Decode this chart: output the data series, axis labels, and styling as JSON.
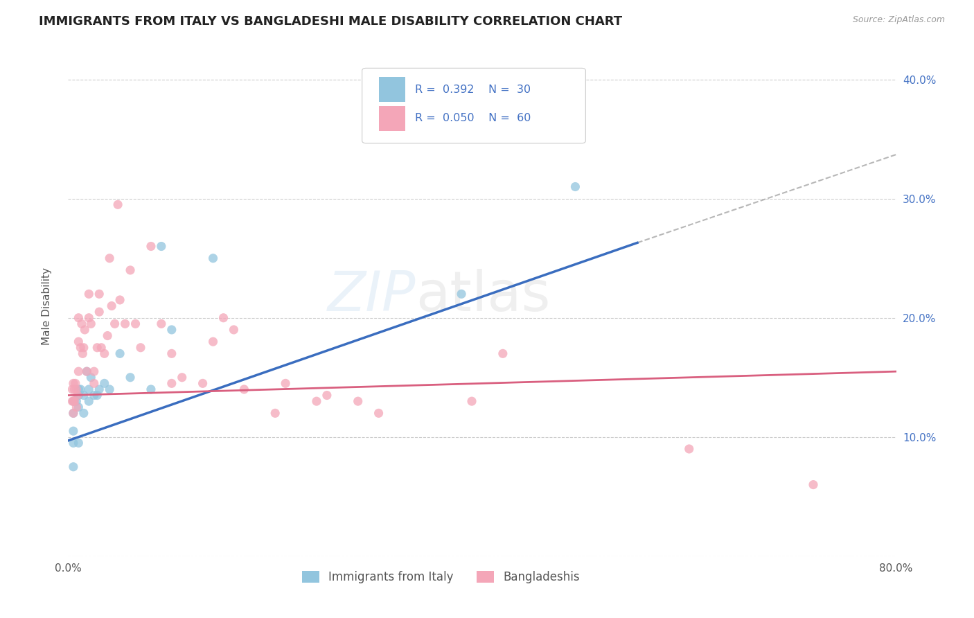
{
  "title": "IMMIGRANTS FROM ITALY VS BANGLADESHI MALE DISABILITY CORRELATION CHART",
  "source": "Source: ZipAtlas.com",
  "ylabel": "Male Disability",
  "legend_label1": "Immigrants from Italy",
  "legend_label2": "Bangladeshis",
  "R1": "0.392",
  "N1": "30",
  "R2": "0.050",
  "N2": "60",
  "xlim": [
    0.0,
    0.8
  ],
  "ylim": [
    0.0,
    0.42
  ],
  "xticks": [
    0.0,
    0.1,
    0.2,
    0.3,
    0.4,
    0.5,
    0.6,
    0.7,
    0.8
  ],
  "yticks": [
    0.0,
    0.1,
    0.2,
    0.3,
    0.4
  ],
  "color_blue": "#92c5de",
  "color_pink": "#f4a6b8",
  "color_line_blue": "#3a6dbf",
  "color_line_pink": "#d95f7f",
  "color_dashed": "#b0b0b0",
  "background": "#ffffff",
  "italy_x": [
    0.005,
    0.005,
    0.005,
    0.005,
    0.005,
    0.008,
    0.01,
    0.01,
    0.01,
    0.01,
    0.012,
    0.015,
    0.015,
    0.018,
    0.02,
    0.02,
    0.022,
    0.025,
    0.028,
    0.03,
    0.035,
    0.04,
    0.05,
    0.06,
    0.08,
    0.09,
    0.1,
    0.14,
    0.38,
    0.49
  ],
  "italy_y": [
    0.13,
    0.12,
    0.105,
    0.095,
    0.075,
    0.13,
    0.14,
    0.135,
    0.125,
    0.095,
    0.14,
    0.135,
    0.12,
    0.155,
    0.14,
    0.13,
    0.15,
    0.135,
    0.135,
    0.14,
    0.145,
    0.14,
    0.17,
    0.15,
    0.14,
    0.26,
    0.19,
    0.25,
    0.22,
    0.31
  ],
  "bangla_x": [
    0.004,
    0.004,
    0.005,
    0.005,
    0.005,
    0.006,
    0.006,
    0.007,
    0.008,
    0.008,
    0.009,
    0.01,
    0.01,
    0.01,
    0.012,
    0.013,
    0.014,
    0.015,
    0.016,
    0.018,
    0.02,
    0.02,
    0.022,
    0.025,
    0.025,
    0.028,
    0.03,
    0.03,
    0.032,
    0.035,
    0.038,
    0.04,
    0.042,
    0.045,
    0.048,
    0.05,
    0.055,
    0.06,
    0.065,
    0.07,
    0.08,
    0.09,
    0.1,
    0.1,
    0.11,
    0.13,
    0.14,
    0.15,
    0.16,
    0.17,
    0.2,
    0.21,
    0.24,
    0.25,
    0.28,
    0.3,
    0.39,
    0.42,
    0.6,
    0.72
  ],
  "bangla_y": [
    0.14,
    0.13,
    0.145,
    0.13,
    0.12,
    0.14,
    0.13,
    0.145,
    0.14,
    0.125,
    0.135,
    0.2,
    0.18,
    0.155,
    0.175,
    0.195,
    0.17,
    0.175,
    0.19,
    0.155,
    0.22,
    0.2,
    0.195,
    0.155,
    0.145,
    0.175,
    0.22,
    0.205,
    0.175,
    0.17,
    0.185,
    0.25,
    0.21,
    0.195,
    0.295,
    0.215,
    0.195,
    0.24,
    0.195,
    0.175,
    0.26,
    0.195,
    0.17,
    0.145,
    0.15,
    0.145,
    0.18,
    0.2,
    0.19,
    0.14,
    0.12,
    0.145,
    0.13,
    0.135,
    0.13,
    0.12,
    0.13,
    0.17,
    0.09,
    0.06
  ],
  "blue_line_x0": 0.0,
  "blue_line_y0": 0.097,
  "blue_line_x1": 0.55,
  "blue_line_y1": 0.263,
  "pink_line_x0": 0.0,
  "pink_line_y0": 0.135,
  "pink_line_x1": 0.8,
  "pink_line_y1": 0.155,
  "dash_line_x0": 0.55,
  "dash_line_y0": 0.263,
  "dash_line_x1": 0.8,
  "dash_line_y1": 0.337
}
